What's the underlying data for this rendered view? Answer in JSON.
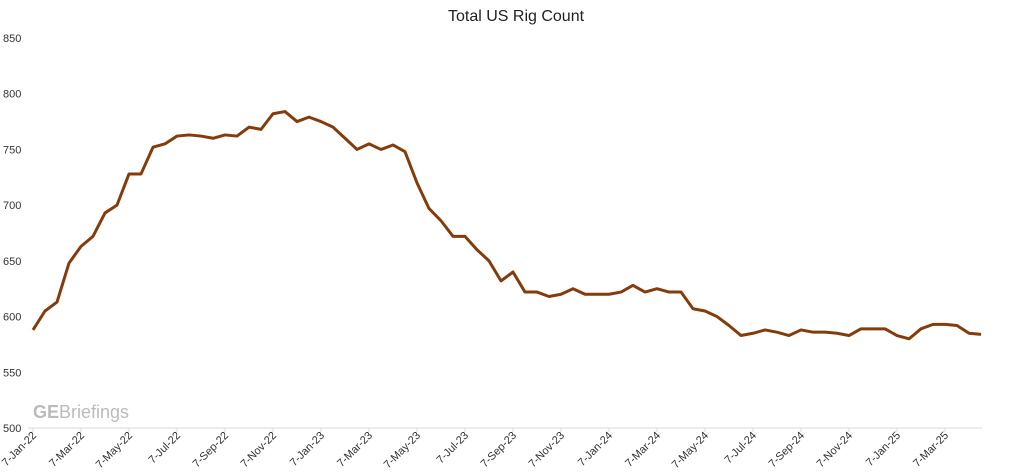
{
  "chart_data": {
    "type": "line",
    "title": "Total US Rig Count",
    "watermark": [
      "GE",
      "Briefings"
    ],
    "categories": [
      "7-Jan-22",
      null,
      null,
      null,
      "7-Mar-22",
      null,
      null,
      null,
      "7-May-22",
      null,
      null,
      null,
      "7-Jul-22",
      null,
      null,
      null,
      "7-Sep-22",
      null,
      null,
      null,
      "7-Nov-22",
      null,
      null,
      null,
      "7-Jan-23",
      null,
      null,
      null,
      "7-Mar-23",
      null,
      null,
      null,
      "7-May-23",
      null,
      null,
      null,
      "7-Jul-23",
      null,
      null,
      null,
      "7-Sep-23",
      null,
      null,
      null,
      "7-Nov-23",
      null,
      null,
      null,
      "7-Jan-24",
      null,
      null,
      null,
      "7-Mar-24",
      null,
      null,
      null,
      "7-May-24",
      null,
      null,
      null,
      "7-Jul-24",
      null,
      null,
      null,
      "7-Sep-24",
      null,
      null,
      null,
      "7-Nov-24",
      null,
      null,
      null,
      "7-Jan-25",
      null,
      null,
      null,
      "7-Mar-25",
      null,
      null,
      null
    ],
    "series": [
      {
        "name": "Total US Rig Count",
        "color": "#843c0c",
        "values": [
          588,
          605,
          613,
          648,
          663,
          672,
          693,
          700,
          728,
          728,
          752,
          755,
          762,
          763,
          762,
          760,
          763,
          762,
          770,
          768,
          782,
          784,
          775,
          779,
          775,
          770,
          760,
          750,
          755,
          750,
          754,
          748,
          720,
          697,
          686,
          672,
          672,
          660,
          650,
          632,
          640,
          622,
          622,
          618,
          620,
          625,
          620,
          620,
          620,
          622,
          628,
          622,
          625,
          622,
          622,
          607,
          605,
          600,
          592,
          583,
          585,
          588,
          586,
          583,
          588,
          586,
          586,
          585,
          583,
          589,
          589,
          589,
          583,
          580,
          589,
          593,
          593,
          592,
          585,
          584
        ]
      }
    ],
    "ylim": [
      500,
      850
    ],
    "yticks": [
      500,
      550,
      600,
      650,
      700,
      750,
      800,
      850
    ],
    "grid": false
  }
}
